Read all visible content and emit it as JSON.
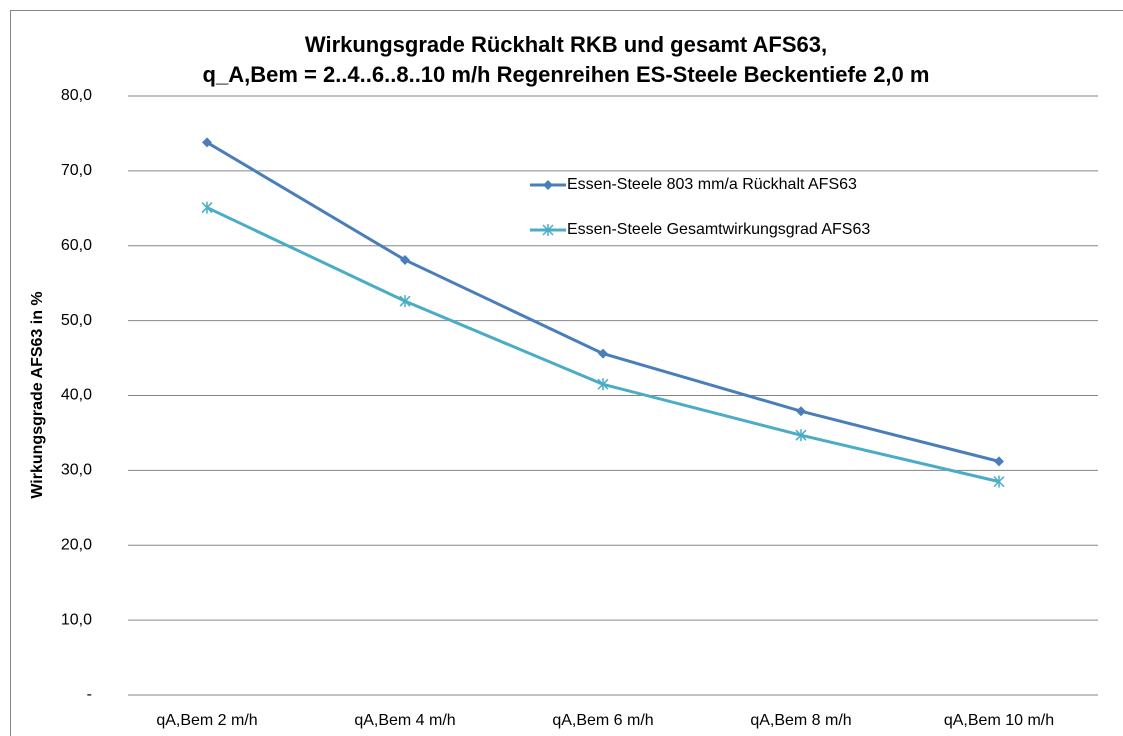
{
  "chart_data": {
    "type": "line",
    "title": [
      "Wirkungsgrade Rückhalt RKB und gesamt AFS63,",
      "q_A,Bem = 2..4..6..8..10 m/h Regenreihen ES-Steele Beckentiefe 2,0 m"
    ],
    "y_label": "Wirkungsgrade AFS63  in %",
    "categories": [
      "qA,Bem 2 m/h",
      "qA,Bem 4 m/h",
      "qA,Bem 6 m/h",
      "qA,Bem 8 m/h",
      "qA,Bem 10 m/h"
    ],
    "series": [
      {
        "name": "Essen-Steele 803 mm/a Rückhalt AFS63",
        "color": "#4a7ebb",
        "marker": "diamond",
        "values": [
          73.8,
          58.1,
          45.6,
          37.9,
          31.2
        ]
      },
      {
        "name": "Essen-Steele Gesamtwirkungsgrad AFS63",
        "color": "#4bacc6",
        "marker": "asterisk",
        "values": [
          65.1,
          52.6,
          41.5,
          34.7,
          28.5
        ]
      }
    ],
    "ylim": [
      0,
      80
    ],
    "yticks": [
      {
        "value": 0,
        "label": "-"
      },
      {
        "value": 10,
        "label": "10,0"
      },
      {
        "value": 20,
        "label": "20,0"
      },
      {
        "value": 30,
        "label": "30,0"
      },
      {
        "value": 40,
        "label": "40,0"
      },
      {
        "value": 50,
        "label": "50,0"
      },
      {
        "value": 60,
        "label": "60,0"
      },
      {
        "value": 70,
        "label": "70,0"
      },
      {
        "value": 80,
        "label": "80,0"
      }
    ],
    "grid": true,
    "legend": "inside-top"
  }
}
